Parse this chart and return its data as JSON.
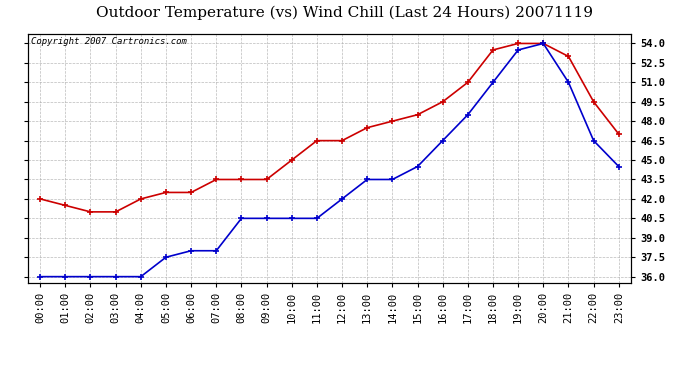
{
  "title": "Outdoor Temperature (vs) Wind Chill (Last 24 Hours) 20071119",
  "copyright": "Copyright 2007 Cartronics.com",
  "hours": [
    "00:00",
    "01:00",
    "02:00",
    "03:00",
    "04:00",
    "05:00",
    "06:00",
    "07:00",
    "08:00",
    "09:00",
    "10:00",
    "11:00",
    "12:00",
    "13:00",
    "14:00",
    "15:00",
    "16:00",
    "17:00",
    "18:00",
    "19:00",
    "20:00",
    "21:00",
    "22:00",
    "23:00"
  ],
  "temp": [
    42.0,
    41.5,
    41.0,
    41.0,
    42.0,
    42.5,
    42.5,
    43.5,
    43.5,
    43.5,
    45.0,
    46.5,
    46.5,
    47.5,
    48.0,
    48.5,
    49.5,
    51.0,
    53.5,
    54.0,
    54.0,
    53.0,
    49.5,
    47.0
  ],
  "wind_chill": [
    36.0,
    36.0,
    36.0,
    36.0,
    36.0,
    37.5,
    38.0,
    38.0,
    40.5,
    40.5,
    40.5,
    40.5,
    42.0,
    43.5,
    43.5,
    44.5,
    46.5,
    48.5,
    51.0,
    53.5,
    54.0,
    51.0,
    46.5,
    44.5
  ],
  "temp_color": "#cc0000",
  "wind_chill_color": "#0000cc",
  "bg_color": "#ffffff",
  "grid_color": "#aaaaaa",
  "ylim_min": 35.5,
  "ylim_max": 54.75,
  "yticks": [
    36.0,
    37.5,
    39.0,
    40.5,
    42.0,
    43.5,
    45.0,
    46.5,
    48.0,
    49.5,
    51.0,
    52.5,
    54.0
  ],
  "title_fontsize": 11,
  "copyright_fontsize": 6.5,
  "tick_fontsize": 7.5,
  "marker": "+",
  "marker_size": 4,
  "marker_edge_width": 1.2,
  "line_width": 1.2
}
